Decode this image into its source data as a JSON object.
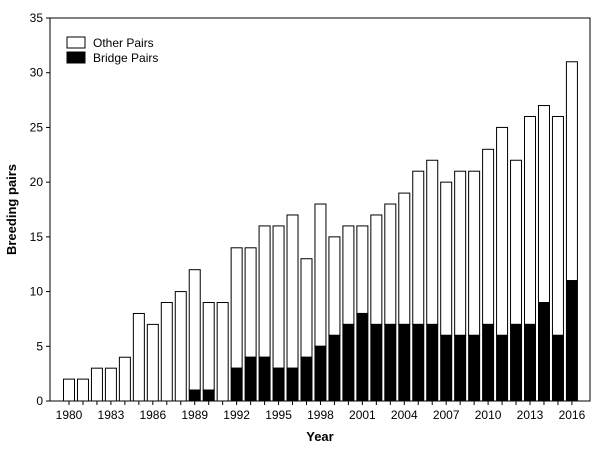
{
  "chart_data": {
    "type": "bar",
    "stacked": true,
    "title": "",
    "xlabel": "Year",
    "ylabel": "Breeding pairs",
    "ylim": [
      0,
      35
    ],
    "yticks": [
      0,
      5,
      10,
      15,
      20,
      25,
      30,
      35
    ],
    "xtick_labels": [
      "1980",
      "1983",
      "1986",
      "1989",
      "1992",
      "1995",
      "1998",
      "2001",
      "2004",
      "2007",
      "2010",
      "2013",
      "2016"
    ],
    "grid": false,
    "legend_position": "top-left",
    "categories": [
      "1980",
      "1981",
      "1982",
      "1983",
      "1984",
      "1985",
      "1986",
      "1987",
      "1988",
      "1989",
      "1990",
      "1991",
      "1992",
      "1993",
      "1994",
      "1995",
      "1996",
      "1997",
      "1998",
      "1999",
      "2000",
      "2001",
      "2002",
      "2003",
      "2004",
      "2005",
      "2006",
      "2007",
      "2008",
      "2009",
      "2010",
      "2011",
      "2012",
      "2013",
      "2014",
      "2015",
      "2016"
    ],
    "series": [
      {
        "name": "Bridge Pairs",
        "color": "#000000",
        "values": [
          0,
          0,
          0,
          0,
          0,
          0,
          0,
          0,
          0,
          1,
          1,
          0,
          3,
          4,
          4,
          3,
          3,
          4,
          5,
          6,
          7,
          8,
          7,
          7,
          7,
          7,
          7,
          6,
          6,
          6,
          7,
          6,
          7,
          7,
          9,
          6,
          11
        ]
      },
      {
        "name": "Other Pairs",
        "color": "#ffffff",
        "values": [
          2,
          2,
          3,
          3,
          4,
          8,
          7,
          9,
          10,
          11,
          8,
          9,
          11,
          10,
          12,
          13,
          14,
          9,
          13,
          9,
          9,
          8,
          10,
          11,
          12,
          14,
          15,
          14,
          15,
          15,
          16,
          19,
          15,
          19,
          18,
          20,
          20
        ]
      }
    ]
  }
}
